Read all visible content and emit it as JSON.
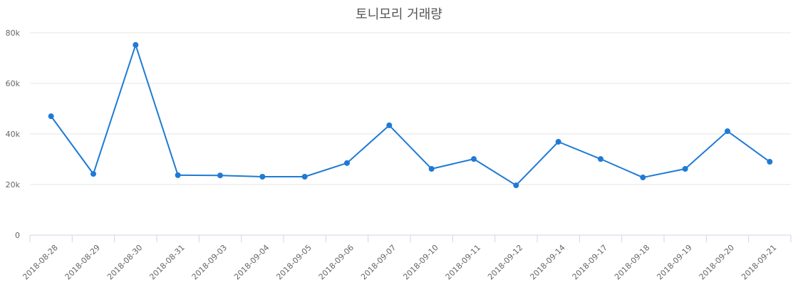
{
  "chart_data": {
    "type": "line",
    "title": "토니모리 거래량",
    "xlabel": "",
    "ylabel": "",
    "ylim": [
      0,
      80000
    ],
    "yticks": [
      0,
      20000,
      40000,
      60000,
      80000
    ],
    "ytick_labels": [
      "0",
      "20k",
      "40k",
      "60k",
      "80k"
    ],
    "grid": true,
    "legend": null,
    "categories": [
      "2018-08-28",
      "2018-08-29",
      "2018-08-30",
      "2018-08-31",
      "2018-09-03",
      "2018-09-04",
      "2018-09-05",
      "2018-09-06",
      "2018-09-07",
      "2018-09-10",
      "2018-09-11",
      "2018-09-12",
      "2018-09-14",
      "2018-09-17",
      "2018-09-18",
      "2018-09-19",
      "2018-09-20",
      "2018-09-21"
    ],
    "series": [
      {
        "name": "거래량",
        "color": "#1f7ad6",
        "values": [
          47000,
          24200,
          75200,
          23700,
          23600,
          23100,
          23100,
          28500,
          43400,
          26200,
          30100,
          19700,
          36900,
          30100,
          22800,
          26200,
          41100,
          29000
        ]
      }
    ]
  }
}
